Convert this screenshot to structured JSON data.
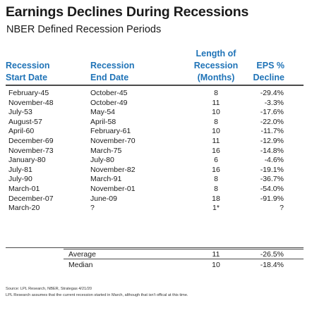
{
  "title": "Earnings Declines During Recessions",
  "subtitle": "NBER Defined Recession Periods",
  "headers": {
    "start": [
      "Recession",
      "Start Date"
    ],
    "end": [
      "Recession",
      "End Date"
    ],
    "length": [
      "Length of",
      "Recession",
      "(Months)"
    ],
    "eps": [
      "EPS %",
      "Decline"
    ]
  },
  "rows": [
    {
      "start": "February-45",
      "end": "October-45",
      "length": "8",
      "eps": "-29.4%"
    },
    {
      "start": "November-48",
      "end": "October-49",
      "length": "11",
      "eps": "-3.3%"
    },
    {
      "start": "July-53",
      "end": "May-54",
      "length": "10",
      "eps": "-17.6%"
    },
    {
      "start": "August-57",
      "end": "April-58",
      "length": "8",
      "eps": "-22.0%"
    },
    {
      "start": "April-60",
      "end": "February-61",
      "length": "10",
      "eps": "-11.7%"
    },
    {
      "start": "December-69",
      "end": "November-70",
      "length": "11",
      "eps": "-12.9%"
    },
    {
      "start": "November-73",
      "end": "March-75",
      "length": "16",
      "eps": "-14.8%"
    },
    {
      "start": "January-80",
      "end": "July-80",
      "length": "6",
      "eps": "-4.6%"
    },
    {
      "start": "July-81",
      "end": "November-82",
      "length": "16",
      "eps": "-19.1%"
    },
    {
      "start": "July-90",
      "end": "March-91",
      "length": "8",
      "eps": "-36.7%"
    },
    {
      "start": "March-01",
      "end": "November-01",
      "length": "8",
      "eps": "-54.0%"
    },
    {
      "start": "December-07",
      "end": "June-09",
      "length": "18",
      "eps": "-91.9%"
    },
    {
      "start": "March-20",
      "end": "?",
      "length": "1*",
      "eps": "?"
    }
  ],
  "summary": [
    {
      "label": "Average",
      "length": "11",
      "eps": "-26.5%"
    },
    {
      "label": "Median",
      "length": "10",
      "eps": "-18.4%"
    }
  ],
  "notes": {
    "source": "Source: LPL Research, NBER, Strategas 4/21/20",
    "disclaimer": "LPL Research assumes that the current recession started in March, although that isn't offical at this time."
  },
  "colors": {
    "header": "#1f73b7",
    "rule": "#4a4a4a"
  }
}
